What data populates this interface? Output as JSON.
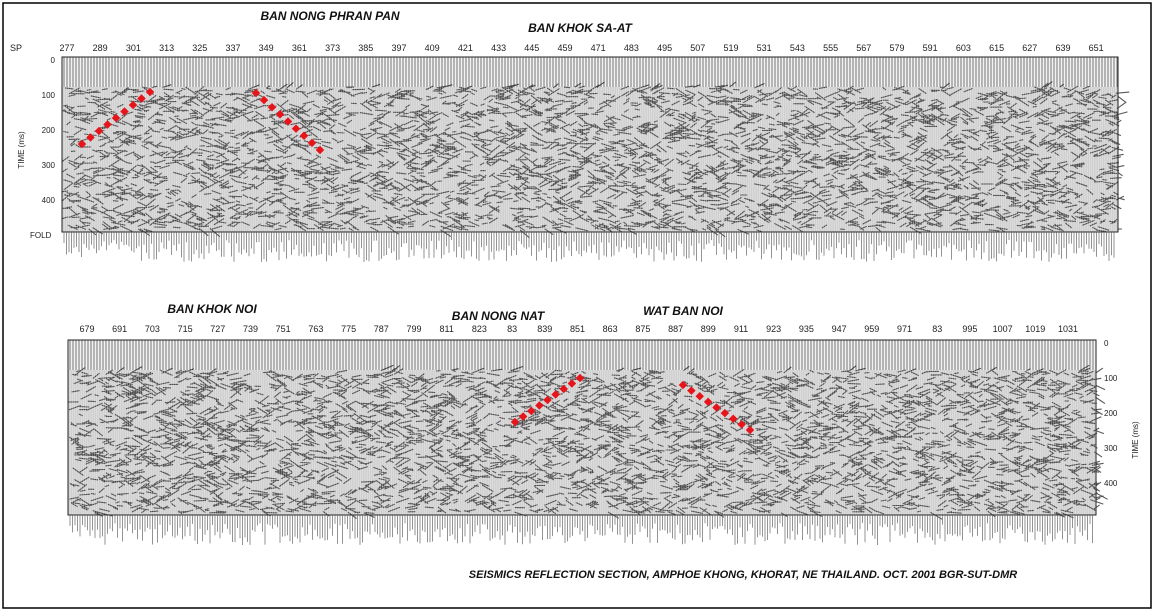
{
  "top_panel": {
    "places": [
      "BAN NONG PHRAN PAN",
      "BAN KHOK SA-AT"
    ],
    "sp_prefix": "SP",
    "shot_points": [
      "277",
      "289",
      "301",
      "313",
      "325",
      "337",
      "349",
      "361",
      "373",
      "385",
      "397",
      "409",
      "421",
      "433",
      "445",
      "459",
      "471",
      "483",
      "495",
      "507",
      "519",
      "531",
      "543",
      "555",
      "567",
      "579",
      "591",
      "603",
      "615",
      "627",
      "639",
      "651"
    ],
    "time_label": "TIME (ms)",
    "time_ticks": [
      "0",
      "100",
      "200",
      "300",
      "400"
    ],
    "fold_label": "FOLD"
  },
  "bottom_panel": {
    "places": [
      "BAN KHOK NOI",
      "BAN NONG NAT",
      "WAT BAN NOI"
    ],
    "shot_points": [
      "679",
      "691",
      "703",
      "715",
      "727",
      "739",
      "751",
      "763",
      "775",
      "787",
      "799",
      "811",
      "823",
      "83",
      "839",
      "851",
      "863",
      "875",
      "887",
      "899",
      "911",
      "923",
      "935",
      "947",
      "959",
      "971",
      "83",
      "995",
      "1007",
      "1019",
      "1031"
    ],
    "time_label": "TIME (ms)",
    "time_ticks": [
      "0",
      "100",
      "200",
      "300",
      "400"
    ]
  },
  "caption": "SEISMICS REFLECTION SECTION, AMPHOE KHONG, KHORAT, NE THAILAND. OCT. 2001 BGR-SUT-DMR"
}
